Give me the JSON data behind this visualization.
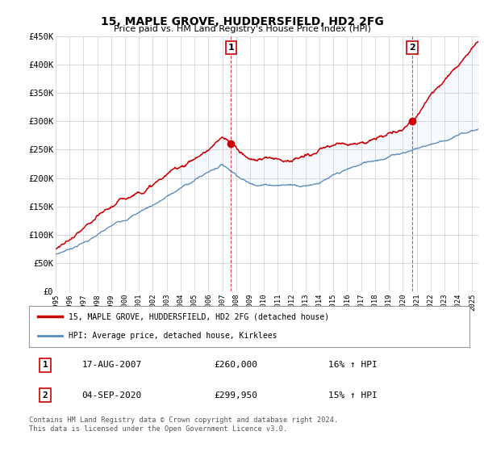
{
  "title": "15, MAPLE GROVE, HUDDERSFIELD, HD2 2FG",
  "subtitle": "Price paid vs. HM Land Registry's House Price Index (HPI)",
  "ylabel_ticks": [
    "£0",
    "£50K",
    "£100K",
    "£150K",
    "£200K",
    "£250K",
    "£300K",
    "£350K",
    "£400K",
    "£450K"
  ],
  "ytick_values": [
    0,
    50000,
    100000,
    150000,
    200000,
    250000,
    300000,
    350000,
    400000,
    450000
  ],
  "ylim": [
    0,
    450000
  ],
  "xlim_start": 1995.0,
  "xlim_end": 2025.5,
  "xtick_years": [
    1995,
    1996,
    1997,
    1998,
    1999,
    2000,
    2001,
    2002,
    2003,
    2004,
    2005,
    2006,
    2007,
    2008,
    2009,
    2010,
    2011,
    2012,
    2013,
    2014,
    2015,
    2016,
    2017,
    2018,
    2019,
    2020,
    2021,
    2022,
    2023,
    2024,
    2025
  ],
  "red_line_color": "#cc0000",
  "blue_line_color": "#5588bb",
  "fill_color": "#ddeeff",
  "point1_x": 2007.62,
  "point1_y": 260000,
  "point2_x": 2020.67,
  "point2_y": 299950,
  "legend_label1": "15, MAPLE GROVE, HUDDERSFIELD, HD2 2FG (detached house)",
  "legend_label2": "HPI: Average price, detached house, Kirklees",
  "table_row1": [
    "1",
    "17-AUG-2007",
    "£260,000",
    "16% ↑ HPI"
  ],
  "table_row2": [
    "2",
    "04-SEP-2020",
    "£299,950",
    "15% ↑ HPI"
  ],
  "footer": "Contains HM Land Registry data © Crown copyright and database right 2024.\nThis data is licensed under the Open Government Licence v3.0.",
  "bg_color": "#ffffff",
  "grid_color": "#cccccc",
  "title_fontsize": 10,
  "subtitle_fontsize": 8
}
